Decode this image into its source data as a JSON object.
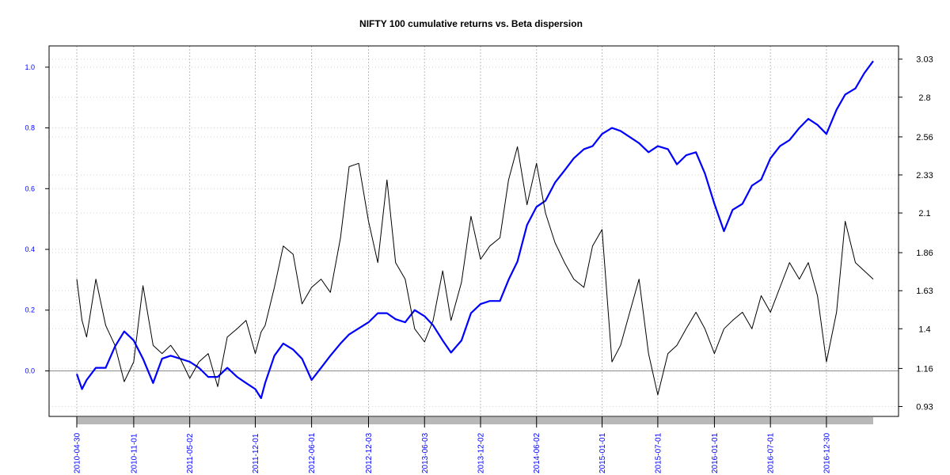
{
  "chart_data": {
    "type": "line",
    "title": "NIFTY 100 cumulative returns vs. Beta dispersion",
    "xlabel": "",
    "x_tick_labels": [
      "2010-04-30",
      "2010-11-01",
      "2011-05-02",
      "2011-12-01",
      "2012-06-01",
      "2012-12-03",
      "2013-06-03",
      "2013-12-02",
      "2014-06-02",
      "2015-01-01",
      "2015-07-01",
      "2016-01-01",
      "2016-07-01",
      "2016-12-30"
    ],
    "x_range": [
      "2010-04-30",
      "2017-05-31"
    ],
    "y_left": {
      "ylabel": "",
      "ylim": [
        -0.15,
        1.07
      ],
      "ticks": [
        0.0,
        0.2,
        0.4,
        0.6,
        0.8,
        1.0
      ],
      "tick_labels": [
        "0.0",
        "0.2",
        "0.4",
        "0.6",
        "0.8",
        "1.0"
      ]
    },
    "y_right": {
      "ylabel": "",
      "ylim": [
        0.87,
        3.11
      ],
      "ticks": [
        0.93,
        1.16,
        1.4,
        1.63,
        1.86,
        2.1,
        2.33,
        2.56,
        2.8,
        3.03
      ],
      "tick_labels": [
        "0.93",
        "1.16",
        "1.4",
        "1.63",
        "1.86",
        "2.1",
        "2.33",
        "2.56",
        "2.8",
        "3.03"
      ]
    },
    "grid": true,
    "legend": "none",
    "series": [
      {
        "axis": "left",
        "color": "#0000ff",
        "x": [
          "2010-04-30",
          "2010-05-17",
          "2010-06-01",
          "2010-07-01",
          "2010-08-02",
          "2010-09-01",
          "2010-10-01",
          "2010-11-01",
          "2010-12-01",
          "2011-01-03",
          "2011-02-01",
          "2011-03-01",
          "2011-04-01",
          "2011-05-02",
          "2011-06-01",
          "2011-07-01",
          "2011-08-01",
          "2011-09-01",
          "2011-10-03",
          "2011-11-01",
          "2011-12-01",
          "2011-12-20",
          "2012-01-02",
          "2012-02-01",
          "2012-03-01",
          "2012-04-02",
          "2012-05-01",
          "2012-06-01",
          "2012-07-02",
          "2012-08-01",
          "2012-09-03",
          "2012-10-01",
          "2012-11-01",
          "2012-12-03",
          "2013-01-02",
          "2013-02-01",
          "2013-03-01",
          "2013-04-01",
          "2013-05-02",
          "2013-06-03",
          "2013-07-01",
          "2013-08-01",
          "2013-08-28",
          "2013-10-01",
          "2013-11-01",
          "2013-12-02",
          "2014-01-01",
          "2014-02-03",
          "2014-03-03",
          "2014-04-01",
          "2014-05-02",
          "2014-06-02",
          "2014-07-01",
          "2014-08-01",
          "2014-09-01",
          "2014-10-01",
          "2014-11-03",
          "2014-12-01",
          "2015-01-01",
          "2015-02-02",
          "2015-03-02",
          "2015-04-01",
          "2015-05-01",
          "2015-06-01",
          "2015-07-01",
          "2015-08-03",
          "2015-09-01",
          "2015-10-01",
          "2015-11-02",
          "2015-12-01",
          "2016-01-01",
          "2016-02-01",
          "2016-02-29",
          "2016-04-01",
          "2016-05-02",
          "2016-06-01",
          "2016-07-01",
          "2016-08-01",
          "2016-09-01",
          "2016-10-03",
          "2016-11-01",
          "2016-12-01",
          "2016-12-30",
          "2017-02-01",
          "2017-03-01",
          "2017-04-03",
          "2017-05-02",
          "2017-05-31"
        ],
        "values": [
          -0.01,
          -0.06,
          -0.03,
          0.01,
          0.01,
          0.08,
          0.13,
          0.1,
          0.04,
          -0.04,
          0.04,
          0.05,
          0.04,
          0.03,
          0.01,
          -0.02,
          -0.02,
          0.01,
          -0.02,
          -0.04,
          -0.06,
          -0.09,
          -0.04,
          0.05,
          0.09,
          0.07,
          0.04,
          -0.03,
          0.01,
          0.05,
          0.09,
          0.12,
          0.14,
          0.16,
          0.19,
          0.19,
          0.17,
          0.16,
          0.2,
          0.18,
          0.15,
          0.1,
          0.06,
          0.1,
          0.19,
          0.22,
          0.23,
          0.23,
          0.3,
          0.36,
          0.48,
          0.54,
          0.56,
          0.62,
          0.66,
          0.7,
          0.73,
          0.74,
          0.78,
          0.8,
          0.79,
          0.77,
          0.75,
          0.72,
          0.74,
          0.73,
          0.68,
          0.71,
          0.72,
          0.65,
          0.55,
          0.46,
          0.53,
          0.55,
          0.61,
          0.63,
          0.7,
          0.74,
          0.76,
          0.8,
          0.83,
          0.81,
          0.78,
          0.86,
          0.91,
          0.93,
          0.98,
          1.02
        ]
      },
      {
        "axis": "right",
        "color": "#000000",
        "x": [
          "2010-04-30",
          "2010-05-17",
          "2010-06-01",
          "2010-07-01",
          "2010-08-02",
          "2010-09-01",
          "2010-10-01",
          "2010-11-01",
          "2010-12-01",
          "2011-01-03",
          "2011-02-01",
          "2011-03-01",
          "2011-04-01",
          "2011-05-02",
          "2011-06-01",
          "2011-07-01",
          "2011-08-01",
          "2011-09-01",
          "2011-10-03",
          "2011-11-01",
          "2011-12-01",
          "2011-12-20",
          "2012-01-02",
          "2012-02-01",
          "2012-03-01",
          "2012-04-02",
          "2012-05-01",
          "2012-06-01",
          "2012-07-02",
          "2012-08-01",
          "2012-09-03",
          "2012-10-01",
          "2012-11-01",
          "2012-12-03",
          "2013-01-02",
          "2013-02-01",
          "2013-03-01",
          "2013-04-01",
          "2013-05-02",
          "2013-06-03",
          "2013-07-01",
          "2013-08-01",
          "2013-08-28",
          "2013-10-01",
          "2013-11-01",
          "2013-12-02",
          "2014-01-01",
          "2014-02-03",
          "2014-03-03",
          "2014-04-01",
          "2014-05-02",
          "2014-06-02",
          "2014-07-01",
          "2014-08-01",
          "2014-09-01",
          "2014-10-01",
          "2014-11-03",
          "2014-12-01",
          "2015-01-01",
          "2015-02-02",
          "2015-03-02",
          "2015-04-01",
          "2015-05-01",
          "2015-06-01",
          "2015-07-01",
          "2015-08-03",
          "2015-09-01",
          "2015-10-01",
          "2015-11-02",
          "2015-12-01",
          "2016-01-01",
          "2016-02-01",
          "2016-02-29",
          "2016-04-01",
          "2016-05-02",
          "2016-06-01",
          "2016-07-01",
          "2016-08-01",
          "2016-09-01",
          "2016-10-03",
          "2016-11-01",
          "2016-12-01",
          "2016-12-30",
          "2017-02-01",
          "2017-03-01",
          "2017-04-03",
          "2017-05-02",
          "2017-05-31"
        ],
        "values": [
          1.7,
          1.45,
          1.35,
          1.7,
          1.42,
          1.3,
          1.08,
          1.2,
          1.66,
          1.3,
          1.25,
          1.3,
          1.22,
          1.1,
          1.2,
          1.25,
          1.05,
          1.35,
          1.4,
          1.45,
          1.25,
          1.38,
          1.42,
          1.65,
          1.9,
          1.85,
          1.55,
          1.65,
          1.7,
          1.62,
          1.95,
          2.38,
          2.4,
          2.05,
          1.8,
          2.3,
          1.8,
          1.7,
          1.4,
          1.32,
          1.45,
          1.75,
          1.45,
          1.68,
          2.08,
          1.82,
          1.9,
          1.95,
          2.3,
          2.5,
          2.15,
          2.4,
          2.1,
          1.92,
          1.8,
          1.7,
          1.65,
          1.9,
          2.0,
          1.2,
          1.3,
          1.5,
          1.7,
          1.25,
          1.0,
          1.25,
          1.3,
          1.4,
          1.5,
          1.4,
          1.25,
          1.4,
          1.45,
          1.5,
          1.4,
          1.6,
          1.5,
          1.65,
          1.8,
          1.7,
          1.8,
          1.6,
          1.2,
          1.5,
          2.05,
          1.8,
          1.75,
          1.7
        ]
      }
    ]
  }
}
